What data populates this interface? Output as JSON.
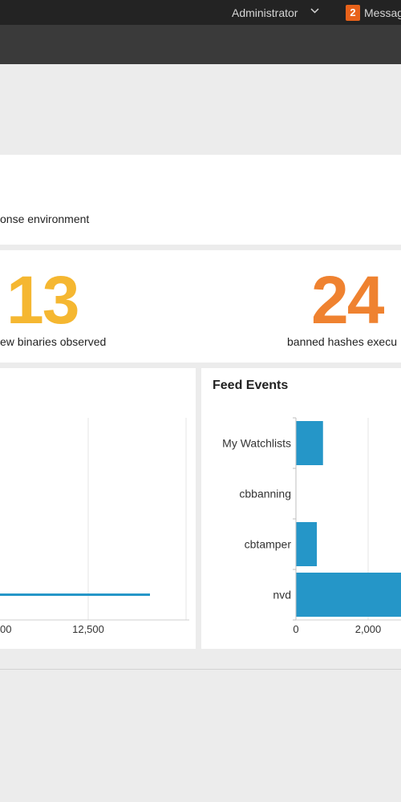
{
  "header": {
    "user_menu": "Administrator",
    "messages_count": "2",
    "messages_label": "Messag"
  },
  "banner": {
    "text": "onse environment"
  },
  "stats": [
    {
      "value": "13",
      "label": "ew binaries observed",
      "color": "#f5b731"
    },
    {
      "value": "24",
      "label": "banned hashes execu",
      "color": "#ef8230"
    }
  ],
  "left_chart": {
    "tick_labels": [
      "00",
      "12,500"
    ]
  },
  "feed_events": {
    "title": "Feed Events"
  },
  "chart_data": [
    {
      "type": "bar",
      "orientation": "horizontal",
      "title": "",
      "categories": [],
      "x_tick_labels": [
        "00",
        "12,500"
      ],
      "note": "partially visible chart; single horizontal bar line visible",
      "grid": true
    },
    {
      "type": "bar",
      "orientation": "horizontal",
      "title": "Feed Events",
      "categories": [
        "My Watchlists",
        "cbbanning",
        "cbtamper",
        "nvd"
      ],
      "values": [
        750,
        0,
        580,
        3000
      ],
      "x_tick_labels": [
        "0",
        "2,000"
      ],
      "xlim": [
        0,
        3000
      ],
      "grid": true,
      "color": "#2596c8"
    }
  ]
}
